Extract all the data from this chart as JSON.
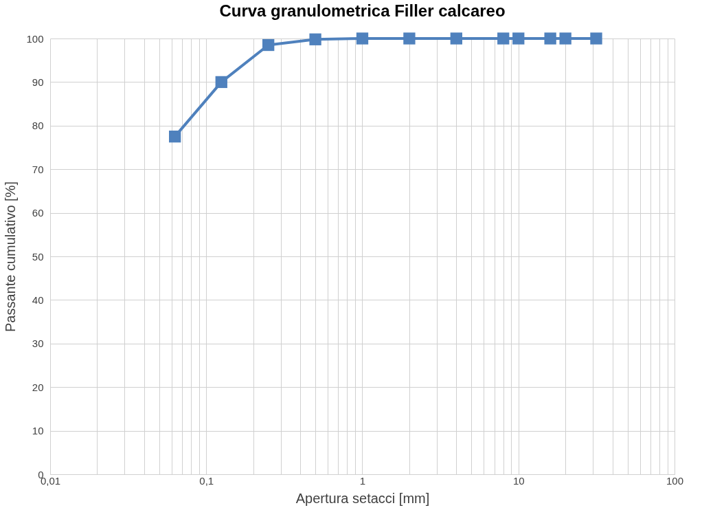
{
  "chart_data": {
    "type": "line",
    "title": "Curva granulometrica Filler calcareo",
    "xlabel": "Apertura setacci [mm]",
    "ylabel": "Passante cumulativo [%]",
    "x": [
      0.063,
      0.125,
      0.25,
      0.5,
      1,
      2,
      4,
      8,
      10,
      16,
      20,
      31.5
    ],
    "series": [
      {
        "color": "#4f81bd",
        "values": [
          77.5,
          90,
          98.5,
          99.8,
          100,
          100,
          100,
          100,
          100,
          100,
          100,
          100
        ]
      }
    ],
    "log": "x",
    "xlim": [
      0.01,
      100
    ],
    "ylim": [
      0,
      100
    ],
    "xticks": [
      {
        "value": 0.01,
        "label": "0,01"
      },
      {
        "value": 0.02,
        "label": null
      },
      {
        "value": 0.03,
        "label": null
      },
      {
        "value": 0.04,
        "label": null
      },
      {
        "value": 0.05,
        "label": null
      },
      {
        "value": 0.06,
        "label": null
      },
      {
        "value": 0.07,
        "label": null
      },
      {
        "value": 0.08,
        "label": null
      },
      {
        "value": 0.09,
        "label": null
      },
      {
        "value": 0.1,
        "label": "0,1"
      },
      {
        "value": 0.2,
        "label": null
      },
      {
        "value": 0.3,
        "label": null
      },
      {
        "value": 0.4,
        "label": null
      },
      {
        "value": 0.5,
        "label": null
      },
      {
        "value": 0.6,
        "label": null
      },
      {
        "value": 0.7,
        "label": null
      },
      {
        "value": 0.8,
        "label": null
      },
      {
        "value": 0.9,
        "label": null
      },
      1,
      {
        "value": 2,
        "label": null
      },
      {
        "value": 3,
        "label": null
      },
      {
        "value": 4,
        "label": null
      },
      {
        "value": 5,
        "label": null
      },
      {
        "value": 6,
        "label": null
      },
      {
        "value": 7,
        "label": null
      },
      {
        "value": 8,
        "label": null
      },
      {
        "value": 9,
        "label": null
      },
      10,
      {
        "value": 20,
        "label": null
      },
      {
        "value": 30,
        "label": null
      },
      {
        "value": 40,
        "label": null
      },
      {
        "value": 50,
        "label": null
      },
      {
        "value": 60,
        "label": null
      },
      {
        "value": 70,
        "label": null
      },
      {
        "value": 80,
        "label": null
      },
      {
        "value": 90,
        "label": null
      },
      100
    ],
    "yticks": [
      0,
      10,
      20,
      30,
      40,
      50,
      60,
      70,
      80,
      90,
      100
    ],
    "grid": true,
    "marker": "square",
    "line_style": "solid"
  }
}
